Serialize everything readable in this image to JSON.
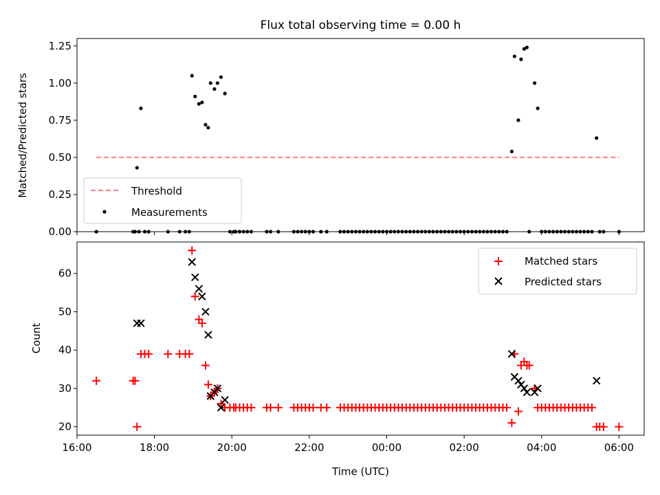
{
  "chart_data": [
    {
      "type": "scatter",
      "title": "Flux total observing time = 0.00 h",
      "xlabel": "",
      "ylabel": "Matched/Predicted stars",
      "ylim": [
        0,
        1.3
      ],
      "xlim_hours": [
        16.0,
        30.65
      ],
      "yticks": [
        "0.00",
        "0.25",
        "0.50",
        "0.75",
        "1.00",
        "1.25"
      ],
      "threshold": {
        "name": "Threshold",
        "value": 0.5,
        "x_range_hours": [
          16.5,
          30.0
        ],
        "color": "#ff7f7f"
      },
      "series": [
        {
          "name": "Measurements",
          "color": "#000000",
          "points": [
            [
              16.5,
              0.0
            ],
            [
              17.55,
              0.43
            ],
            [
              17.65,
              0.83
            ],
            [
              17.45,
              0.0
            ],
            [
              17.5,
              0.0
            ],
            [
              17.6,
              0.0
            ],
            [
              17.75,
              0.0
            ],
            [
              17.85,
              0.0
            ],
            [
              18.35,
              0.0
            ],
            [
              18.65,
              0.0
            ],
            [
              18.8,
              0.0
            ],
            [
              18.9,
              0.0
            ],
            [
              18.97,
              1.05
            ],
            [
              19.05,
              0.91
            ],
            [
              19.15,
              0.86
            ],
            [
              19.23,
              0.87
            ],
            [
              19.32,
              0.72
            ],
            [
              19.39,
              0.7
            ],
            [
              19.45,
              1.0
            ],
            [
              19.55,
              0.96
            ],
            [
              19.63,
              1.0
            ],
            [
              19.72,
              1.04
            ],
            [
              19.82,
              0.93
            ],
            [
              19.95,
              0.0
            ],
            [
              20.05,
              0.0
            ],
            [
              20.1,
              0.0
            ],
            [
              20.2,
              0.0
            ],
            [
              20.3,
              0.0
            ],
            [
              20.4,
              0.0
            ],
            [
              20.5,
              0.0
            ],
            [
              20.9,
              0.0
            ],
            [
              21.0,
              0.0
            ],
            [
              21.2,
              0.0
            ],
            [
              21.6,
              0.0
            ],
            [
              21.7,
              0.0
            ],
            [
              21.8,
              0.0
            ],
            [
              21.9,
              0.0
            ],
            [
              22.0,
              0.0
            ],
            [
              22.1,
              0.0
            ],
            [
              22.3,
              0.0
            ],
            [
              22.45,
              0.0
            ],
            [
              22.8,
              0.0
            ],
            [
              22.9,
              0.0
            ],
            [
              23.0,
              0.0
            ],
            [
              23.1,
              0.0
            ],
            [
              23.2,
              0.0
            ],
            [
              23.3,
              0.0
            ],
            [
              23.4,
              0.0
            ],
            [
              23.5,
              0.0
            ],
            [
              23.6,
              0.0
            ],
            [
              23.7,
              0.0
            ],
            [
              23.8,
              0.0
            ],
            [
              23.9,
              0.0
            ],
            [
              24.0,
              0.0
            ],
            [
              24.1,
              0.0
            ],
            [
              24.2,
              0.0
            ],
            [
              24.3,
              0.0
            ],
            [
              24.4,
              0.0
            ],
            [
              24.5,
              0.0
            ],
            [
              24.6,
              0.0
            ],
            [
              24.7,
              0.0
            ],
            [
              24.8,
              0.0
            ],
            [
              24.9,
              0.0
            ],
            [
              25.0,
              0.0
            ],
            [
              25.1,
              0.0
            ],
            [
              25.2,
              0.0
            ],
            [
              25.3,
              0.0
            ],
            [
              25.4,
              0.0
            ],
            [
              25.5,
              0.0
            ],
            [
              25.6,
              0.0
            ],
            [
              25.7,
              0.0
            ],
            [
              25.8,
              0.0
            ],
            [
              25.9,
              0.0
            ],
            [
              26.0,
              0.0
            ],
            [
              26.1,
              0.0
            ],
            [
              26.2,
              0.0
            ],
            [
              26.3,
              0.0
            ],
            [
              26.4,
              0.0
            ],
            [
              26.5,
              0.0
            ],
            [
              26.6,
              0.0
            ],
            [
              26.7,
              0.0
            ],
            [
              26.8,
              0.0
            ],
            [
              26.9,
              0.0
            ],
            [
              27.0,
              0.0
            ],
            [
              27.1,
              0.0
            ],
            [
              27.23,
              0.54
            ],
            [
              27.3,
              1.18
            ],
            [
              27.4,
              0.75
            ],
            [
              27.47,
              1.16
            ],
            [
              27.55,
              1.23
            ],
            [
              27.62,
              1.24
            ],
            [
              27.68,
              0.0
            ],
            [
              27.82,
              1.0
            ],
            [
              27.9,
              0.83
            ],
            [
              28.0,
              0.0
            ],
            [
              28.1,
              0.0
            ],
            [
              28.2,
              0.0
            ],
            [
              28.3,
              0.0
            ],
            [
              28.4,
              0.0
            ],
            [
              28.5,
              0.0
            ],
            [
              28.6,
              0.0
            ],
            [
              28.7,
              0.0
            ],
            [
              28.8,
              0.0
            ],
            [
              28.9,
              0.0
            ],
            [
              29.0,
              0.0
            ],
            [
              29.1,
              0.0
            ],
            [
              29.2,
              0.0
            ],
            [
              29.3,
              0.0
            ],
            [
              29.42,
              0.63
            ],
            [
              29.5,
              0.0
            ],
            [
              29.6,
              0.0
            ],
            [
              30.0,
              0.0
            ]
          ]
        }
      ],
      "legend": "lower-left"
    },
    {
      "type": "scatter",
      "title": "",
      "xlabel": "Time (UTC)",
      "ylabel": "Count",
      "ylim": [
        17.8,
        68.2
      ],
      "xlim_hours": [
        16.0,
        30.65
      ],
      "yticks": [
        "20",
        "30",
        "40",
        "50",
        "60"
      ],
      "xticks": [
        {
          "hours": 16,
          "label": "16:00"
        },
        {
          "hours": 18,
          "label": "18:00"
        },
        {
          "hours": 20,
          "label": "20:00"
        },
        {
          "hours": 22,
          "label": "22:00"
        },
        {
          "hours": 24,
          "label": "00:00"
        },
        {
          "hours": 26,
          "label": "02:00"
        },
        {
          "hours": 28,
          "label": "04:00"
        },
        {
          "hours": 30,
          "label": "06:00"
        }
      ],
      "series": [
        {
          "name": "Matched stars",
          "marker": "plus",
          "color": "#ff0000",
          "points": [
            [
              16.5,
              32
            ],
            [
              17.45,
              32
            ],
            [
              17.5,
              32
            ],
            [
              17.55,
              20
            ],
            [
              17.65,
              39
            ],
            [
              17.75,
              39
            ],
            [
              17.85,
              39
            ],
            [
              18.35,
              39
            ],
            [
              18.65,
              39
            ],
            [
              18.8,
              39
            ],
            [
              18.9,
              39
            ],
            [
              18.97,
              66
            ],
            [
              19.05,
              54
            ],
            [
              19.15,
              48
            ],
            [
              19.23,
              47
            ],
            [
              19.32,
              36
            ],
            [
              19.39,
              31
            ],
            [
              19.45,
              28
            ],
            [
              19.55,
              29
            ],
            [
              19.63,
              30
            ],
            [
              19.72,
              26
            ],
            [
              19.82,
              25
            ],
            [
              19.95,
              25
            ],
            [
              20.05,
              25
            ],
            [
              20.1,
              25
            ],
            [
              20.2,
              25
            ],
            [
              20.3,
              25
            ],
            [
              20.4,
              25
            ],
            [
              20.5,
              25
            ],
            [
              20.9,
              25
            ],
            [
              21.0,
              25
            ],
            [
              21.2,
              25
            ],
            [
              21.6,
              25
            ],
            [
              21.7,
              25
            ],
            [
              21.8,
              25
            ],
            [
              21.9,
              25
            ],
            [
              22.0,
              25
            ],
            [
              22.1,
              25
            ],
            [
              22.3,
              25
            ],
            [
              22.45,
              25
            ],
            [
              22.8,
              25
            ],
            [
              22.9,
              25
            ],
            [
              23.0,
              25
            ],
            [
              23.1,
              25
            ],
            [
              23.2,
              25
            ],
            [
              23.3,
              25
            ],
            [
              23.4,
              25
            ],
            [
              23.5,
              25
            ],
            [
              23.6,
              25
            ],
            [
              23.7,
              25
            ],
            [
              23.8,
              25
            ],
            [
              23.9,
              25
            ],
            [
              24.0,
              25
            ],
            [
              24.1,
              25
            ],
            [
              24.2,
              25
            ],
            [
              24.3,
              25
            ],
            [
              24.4,
              25
            ],
            [
              24.5,
              25
            ],
            [
              24.6,
              25
            ],
            [
              24.7,
              25
            ],
            [
              24.8,
              25
            ],
            [
              24.9,
              25
            ],
            [
              25.0,
              25
            ],
            [
              25.1,
              25
            ],
            [
              25.2,
              25
            ],
            [
              25.3,
              25
            ],
            [
              25.4,
              25
            ],
            [
              25.5,
              25
            ],
            [
              25.6,
              25
            ],
            [
              25.7,
              25
            ],
            [
              25.8,
              25
            ],
            [
              25.9,
              25
            ],
            [
              26.0,
              25
            ],
            [
              26.1,
              25
            ],
            [
              26.2,
              25
            ],
            [
              26.3,
              25
            ],
            [
              26.4,
              25
            ],
            [
              26.5,
              25
            ],
            [
              26.6,
              25
            ],
            [
              26.7,
              25
            ],
            [
              26.8,
              25
            ],
            [
              26.9,
              25
            ],
            [
              27.0,
              25
            ],
            [
              27.1,
              25
            ],
            [
              27.23,
              21
            ],
            [
              27.3,
              39
            ],
            [
              27.4,
              24
            ],
            [
              27.47,
              36
            ],
            [
              27.55,
              37
            ],
            [
              27.62,
              36
            ],
            [
              27.68,
              36
            ],
            [
              27.82,
              30
            ],
            [
              27.9,
              25
            ],
            [
              28.0,
              25
            ],
            [
              28.1,
              25
            ],
            [
              28.2,
              25
            ],
            [
              28.3,
              25
            ],
            [
              28.4,
              25
            ],
            [
              28.5,
              25
            ],
            [
              28.6,
              25
            ],
            [
              28.7,
              25
            ],
            [
              28.8,
              25
            ],
            [
              28.9,
              25
            ],
            [
              29.0,
              25
            ],
            [
              29.1,
              25
            ],
            [
              29.2,
              25
            ],
            [
              29.3,
              25
            ],
            [
              29.42,
              20
            ],
            [
              29.5,
              20
            ],
            [
              29.6,
              20
            ],
            [
              30.0,
              20
            ]
          ]
        },
        {
          "name": "Predicted stars",
          "marker": "x",
          "color": "#000000",
          "points": [
            [
              17.55,
              47
            ],
            [
              17.65,
              47
            ],
            [
              18.97,
              63
            ],
            [
              19.05,
              59
            ],
            [
              19.15,
              56
            ],
            [
              19.23,
              54
            ],
            [
              19.32,
              50
            ],
            [
              19.39,
              44
            ],
            [
              19.45,
              28
            ],
            [
              19.55,
              29
            ],
            [
              19.63,
              30
            ],
            [
              19.72,
              25
            ],
            [
              19.82,
              27
            ],
            [
              27.23,
              39
            ],
            [
              27.3,
              33
            ],
            [
              27.4,
              32
            ],
            [
              27.47,
              31
            ],
            [
              27.55,
              30
            ],
            [
              27.62,
              29
            ],
            [
              27.82,
              29
            ],
            [
              27.9,
              30
            ],
            [
              29.42,
              32
            ]
          ]
        }
      ],
      "legend": "upper-right"
    }
  ]
}
